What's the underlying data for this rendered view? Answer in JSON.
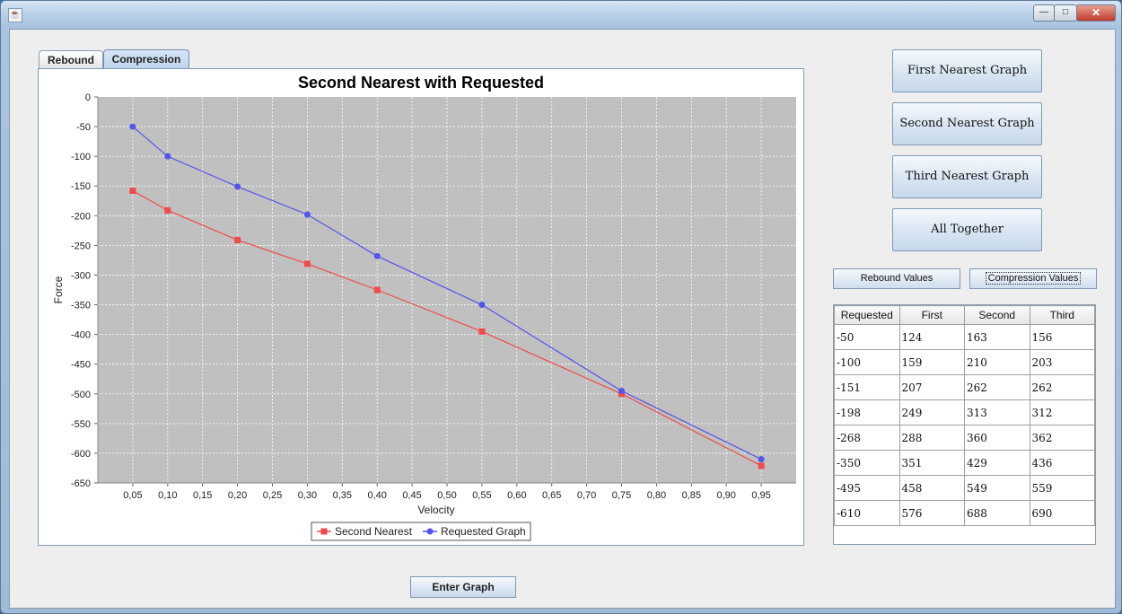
{
  "window": {
    "app_icon_glyph": "☕",
    "controls": {
      "minimize": "—",
      "maximize": "□",
      "close": "✕"
    }
  },
  "tabs": [
    {
      "label": "Rebound"
    },
    {
      "label": "Compression"
    }
  ],
  "chart_data": {
    "type": "line",
    "title": "Second Nearest with Requested",
    "xlabel": "Velocity",
    "ylabel": "Force",
    "xlim": [
      0.0,
      1.0
    ],
    "ylim": [
      -650,
      0
    ],
    "x_ticks": [
      "0,05",
      "0,10",
      "0,15",
      "0,20",
      "0,25",
      "0,30",
      "0,35",
      "0,40",
      "0,45",
      "0,50",
      "0,55",
      "0,60",
      "0,65",
      "0,70",
      "0,75",
      "0,80",
      "0,85",
      "0,90",
      "0,95"
    ],
    "y_ticks": [
      "0",
      "-50",
      "-100",
      "-150",
      "-200",
      "-250",
      "-300",
      "-350",
      "-400",
      "-450",
      "-500",
      "-550",
      "-600",
      "-650"
    ],
    "grid": true,
    "legend": "bottom-center",
    "series": [
      {
        "name": "Second Nearest",
        "color": "#f04a4a",
        "marker": "square",
        "x": [
          0.05,
          0.1,
          0.2,
          0.3,
          0.4,
          0.55,
          0.75,
          0.95
        ],
        "y": [
          -158,
          -191,
          -241,
          -281,
          -325,
          -395,
          -500,
          -621
        ]
      },
      {
        "name": "Requested Graph",
        "color": "#5454ee",
        "marker": "circle",
        "x": [
          0.05,
          0.1,
          0.2,
          0.3,
          0.4,
          0.55,
          0.75,
          0.95
        ],
        "y": [
          -50,
          -100,
          -151,
          -198,
          -268,
          -350,
          -495,
          -610
        ]
      }
    ]
  },
  "side_buttons": {
    "first": "First Nearest Graph",
    "second": "Second Nearest Graph",
    "third": "Third Nearest Graph",
    "all": "All Together"
  },
  "values_buttons": {
    "rebound": "Rebound Values",
    "compression": "Compression Values"
  },
  "table": {
    "headers": [
      "Requested",
      "First",
      "Second",
      "Third"
    ],
    "rows": [
      [
        "-50",
        "124",
        "163",
        "156"
      ],
      [
        "-100",
        "159",
        "210",
        "203"
      ],
      [
        "-151",
        "207",
        "262",
        "262"
      ],
      [
        "-198",
        "249",
        "313",
        "312"
      ],
      [
        "-268",
        "288",
        "360",
        "362"
      ],
      [
        "-350",
        "351",
        "429",
        "436"
      ],
      [
        "-495",
        "458",
        "549",
        "559"
      ],
      [
        "-610",
        "576",
        "688",
        "690"
      ]
    ]
  },
  "enter_button": "Enter Graph"
}
